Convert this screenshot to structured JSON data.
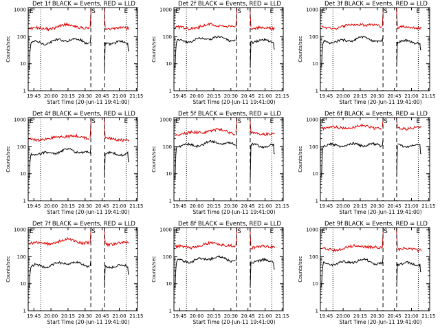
{
  "chart_data": [
    {
      "type": "line",
      "title": "Det 1f BLACK = Events, RED = LLD",
      "events_level": 60,
      "lld_level": 200,
      "min_events": 6,
      "min_lld": 20
    },
    {
      "type": "line",
      "title": "Det 2f BLACK = Events, RED = LLD",
      "events_level": 70,
      "lld_level": 210,
      "min_events": 7,
      "min_lld": 20
    },
    {
      "type": "line",
      "title": "Det 3f BLACK = Events, RED = LLD",
      "events_level": 65,
      "lld_level": 220,
      "min_events": 8,
      "min_lld": 20
    },
    {
      "type": "line",
      "title": "Det 4f BLACK = Events, RED = LLD",
      "events_level": 55,
      "lld_level": 190,
      "min_events": 7,
      "min_lld": 20
    },
    {
      "type": "line",
      "title": "Det 5f BLACK = Events, RED = LLD",
      "events_level": 110,
      "lld_level": 310,
      "min_events": 6,
      "min_lld": 20
    },
    {
      "type": "line",
      "title": "Det 6f BLACK = Events, RED = LLD",
      "events_level": 110,
      "lld_level": 500,
      "min_events": 8,
      "min_lld": 20
    },
    {
      "type": "line",
      "title": "Det 7f BLACK = Events, RED = LLD",
      "events_level": 45,
      "lld_level": 310,
      "min_events": 7,
      "min_lld": 20
    },
    {
      "type": "line",
      "title": "Det 8f BLACK = Events, RED = LLD",
      "events_level": 70,
      "lld_level": 230,
      "min_events": 7,
      "min_lld": 20
    },
    {
      "type": "line",
      "title": "Det 9f BLACK = Events, RED = LLD",
      "events_level": 55,
      "lld_level": 190,
      "min_events": 8,
      "min_lld": 20
    }
  ],
  "shared": {
    "xlabel": "Start Time (20-Jun-11 19:41:00)",
    "ylabel": "Counts/sec",
    "x_ticks": [
      "19:45",
      "20:00",
      "20:15",
      "20:30",
      "20:45",
      "21:00",
      "21:15"
    ],
    "x_range_min": [
      -1,
      95
    ],
    "y_ticks": [
      "1",
      "10",
      "100",
      "1000"
    ],
    "ylim": [
      1,
      1200
    ],
    "y_scale": "log",
    "saa_start_min": 54,
    "saa_end_min": 66,
    "dotted_x_min": [
      10,
      85
    ],
    "marker_start": "S",
    "marker_end": "E",
    "colors": {
      "events": "#000000",
      "lld": "#e00000",
      "frame": "#000000"
    }
  }
}
